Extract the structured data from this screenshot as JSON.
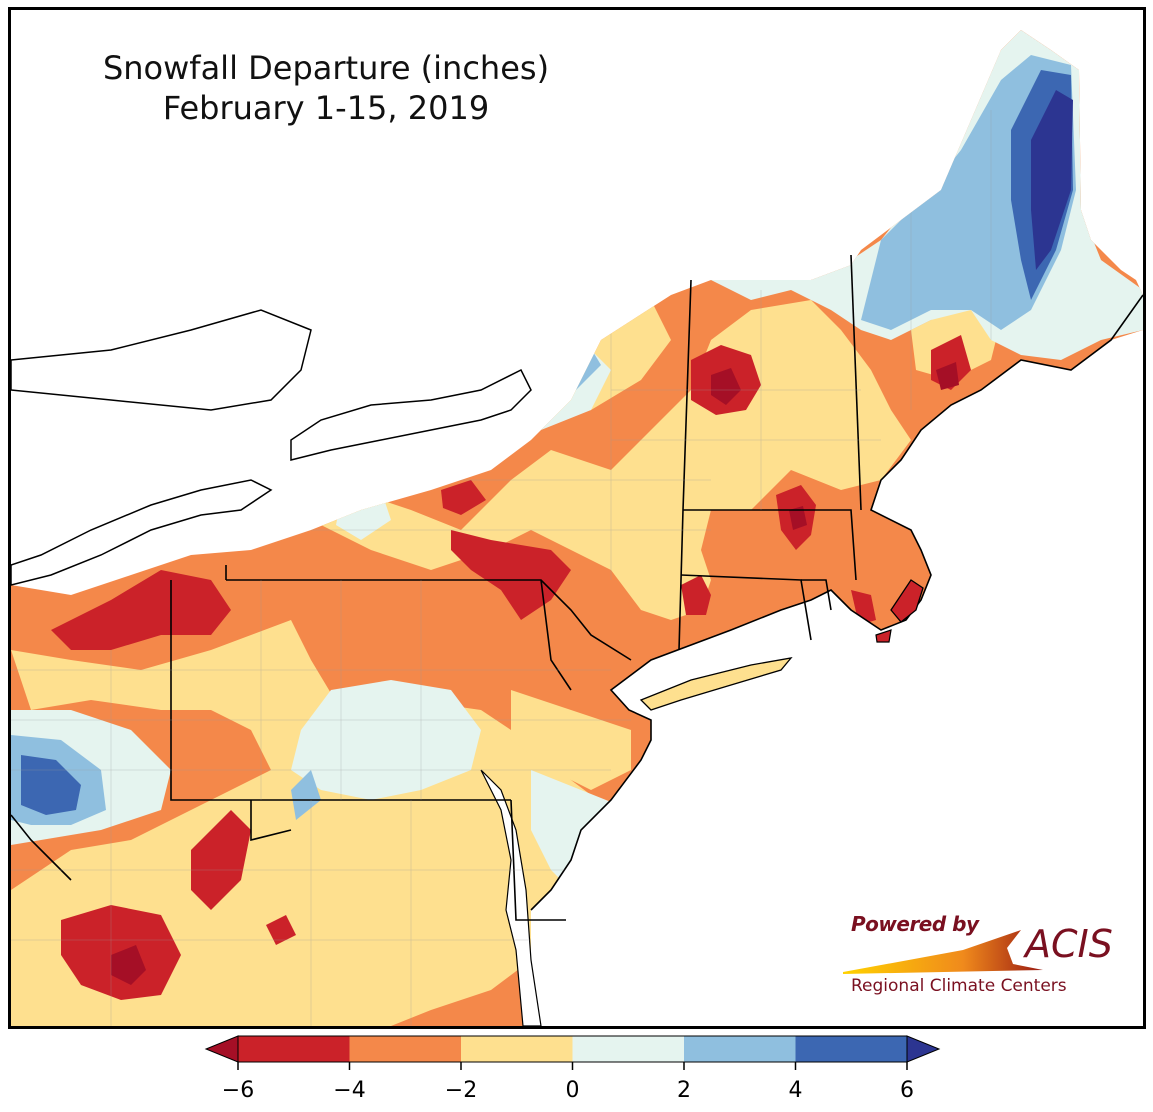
{
  "title": {
    "line1": "Snowfall Departure (inches)",
    "line2": "February 1-15, 2019"
  },
  "logo": {
    "powered": "Powered by",
    "brand": "ACIS",
    "subtitle": "Regional Climate Centers",
    "text_color": "#7a1020"
  },
  "legend": {
    "ticks": [
      "−6",
      "−4",
      "−2",
      "0",
      "2",
      "4",
      "6"
    ],
    "bins": [
      {
        "range": "< -6 to -4",
        "color": "#cb2229"
      },
      {
        "range": "-4 to -2",
        "color": "#f4884a"
      },
      {
        "range": "-2 to 0",
        "color": "#fee08f"
      },
      {
        "range": "0 to 2",
        "color": "#e5f4ef"
      },
      {
        "range": "2 to 4",
        "color": "#8fbfdf"
      },
      {
        "range": "4 to 6",
        "color": "#3c67b2"
      }
    ],
    "extend_low_color": "#a50f26",
    "extend_high_color": "#2c3591"
  },
  "map_palette": {
    "water": "#ffffff",
    "deep_red": "#a50f26",
    "red": "#cb2229",
    "orange": "#f4884a",
    "yellow": "#fee08f",
    "pale": "#e5f4ef",
    "light_blue": "#8fbfdf",
    "blue": "#3c67b2",
    "deep_blue": "#2c3591",
    "border": "#000000",
    "county": "#9a9a9a"
  }
}
